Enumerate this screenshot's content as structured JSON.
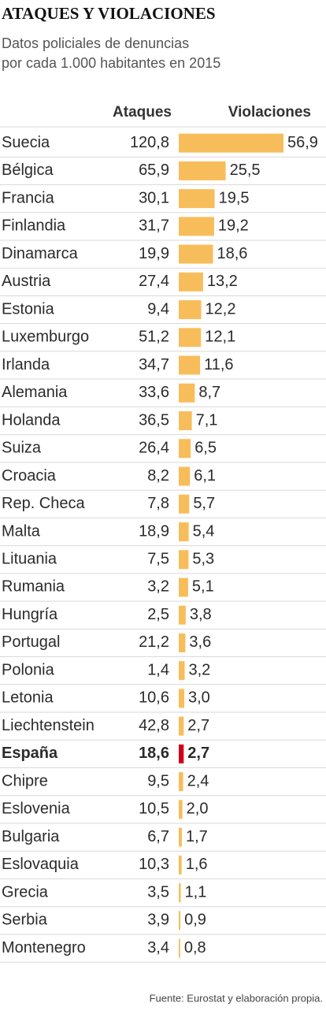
{
  "chart_data": {
    "type": "bar",
    "orientation": "horizontal",
    "title": "ATAQUES Y VIOLACIONES",
    "subtitle": [
      "Datos policiales de denuncias",
      "por cada 1.000 habitantes en 2015"
    ],
    "source": "Fuente: Eurostat  y elaboración propia.",
    "categories": [
      "Suecia",
      "Bélgica",
      "Francia",
      "Finlandia",
      "Dinamarca",
      "Austria",
      "Estonia",
      "Luxemburgo",
      "Irlanda",
      "Alemania",
      "Holanda",
      "Suiza",
      "Croacia",
      "Rep. Checa",
      "Malta",
      "Lituania",
      "Rumania",
      "Hungría",
      "Portugal",
      "Polonia",
      "Letonia",
      "Liechtenstein",
      "España",
      "Chipre",
      "Eslovenia",
      "Bulgaria",
      "Eslovaquia",
      "Grecia",
      "Serbia",
      "Montenegro"
    ],
    "highlight": {
      "category": "España",
      "color": "#d0021b"
    },
    "series": [
      {
        "name": "Ataques",
        "values": [
          120.8,
          65.9,
          30.1,
          31.7,
          19.9,
          27.4,
          9.4,
          51.2,
          34.7,
          33.6,
          36.5,
          26.4,
          8.2,
          7.8,
          18.9,
          7.5,
          3.2,
          2.5,
          21.2,
          1.4,
          10.6,
          42.8,
          18.6,
          9.5,
          10.5,
          6.7,
          10.3,
          3.5,
          3.9,
          3.4
        ],
        "value_labels": [
          "120,8",
          "65,9",
          "30,1",
          "31,7",
          "19,9",
          "27,4",
          "9,4",
          "51,2",
          "34,7",
          "33,6",
          "36,5",
          "26,4",
          "8,2",
          "7,8",
          "18,9",
          "7,5",
          "3,2",
          "2,5",
          "21,2",
          "1,4",
          "10,6",
          "42,8",
          "18,6",
          "9,5",
          "10,5",
          "6,7",
          "10,3",
          "3,5",
          "3,9",
          "3,4"
        ]
      },
      {
        "name": "Violaciones",
        "color": "#f8bd5b",
        "values": [
          56.9,
          25.5,
          19.5,
          19.2,
          18.6,
          13.2,
          12.2,
          12.1,
          11.6,
          8.7,
          7.1,
          6.5,
          6.1,
          5.7,
          5.4,
          5.3,
          5.1,
          3.8,
          3.6,
          3.2,
          3.0,
          2.7,
          2.7,
          2.4,
          2.0,
          1.7,
          1.6,
          1.1,
          0.9,
          0.8
        ],
        "value_labels": [
          "56,9",
          "25,5",
          "19,5",
          "19,2",
          "18,6",
          "13,2",
          "12,2",
          "12,1",
          "11,6",
          "8,7",
          "7,1",
          "6,5",
          "6,1",
          "5,7",
          "5,4",
          "5,3",
          "5,1",
          "3,8",
          "3,6",
          "3,2",
          "3,0",
          "2,7",
          "2,7",
          "2,4",
          "2,0",
          "1,7",
          "1,6",
          "1,1",
          "0,9",
          "0,8"
        ]
      }
    ]
  }
}
